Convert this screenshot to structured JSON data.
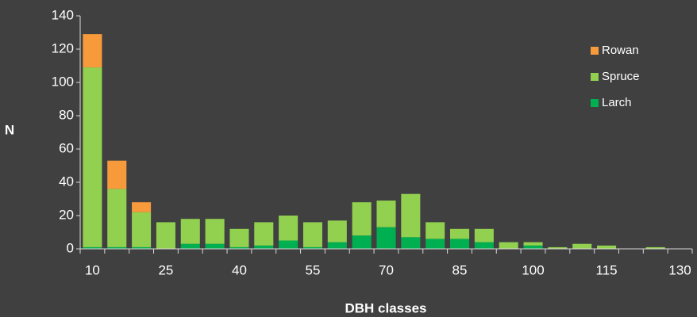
{
  "chart_data": {
    "type": "stacked_bar",
    "x_label": "DBH classes",
    "y_label": "N",
    "categories": [
      "10",
      null,
      null,
      "25",
      null,
      null,
      "40",
      null,
      null,
      "55",
      null,
      null,
      "70",
      null,
      null,
      "85",
      null,
      null,
      "100",
      null,
      null,
      "115",
      null,
      null,
      "130"
    ],
    "series": [
      {
        "name": "Larch",
        "color": "#00b050",
        "values": [
          1,
          1,
          1,
          0,
          3,
          3,
          1,
          2,
          5,
          1,
          4,
          8,
          13,
          7,
          6,
          6,
          4,
          0,
          2,
          0,
          0,
          0,
          0,
          0,
          0
        ]
      },
      {
        "name": "Spruce",
        "color": "#92d050",
        "values": [
          108,
          35,
          21,
          16,
          15,
          15,
          11,
          14,
          15,
          15,
          13,
          20,
          16,
          26,
          10,
          6,
          8,
          4,
          2,
          1,
          3,
          2,
          0,
          1,
          0
        ]
      },
      {
        "name": "Rowan",
        "color": "#f79a3c",
        "values": [
          20,
          17,
          6,
          0,
          0,
          0,
          0,
          0,
          0,
          0,
          0,
          0,
          0,
          0,
          0,
          0,
          0,
          0,
          0,
          0,
          0,
          0,
          0,
          0,
          0
        ]
      }
    ],
    "ylim": [
      0,
      140
    ],
    "yticks": [
      0,
      20,
      40,
      60,
      80,
      100,
      120,
      140
    ],
    "legend": "upper right"
  }
}
